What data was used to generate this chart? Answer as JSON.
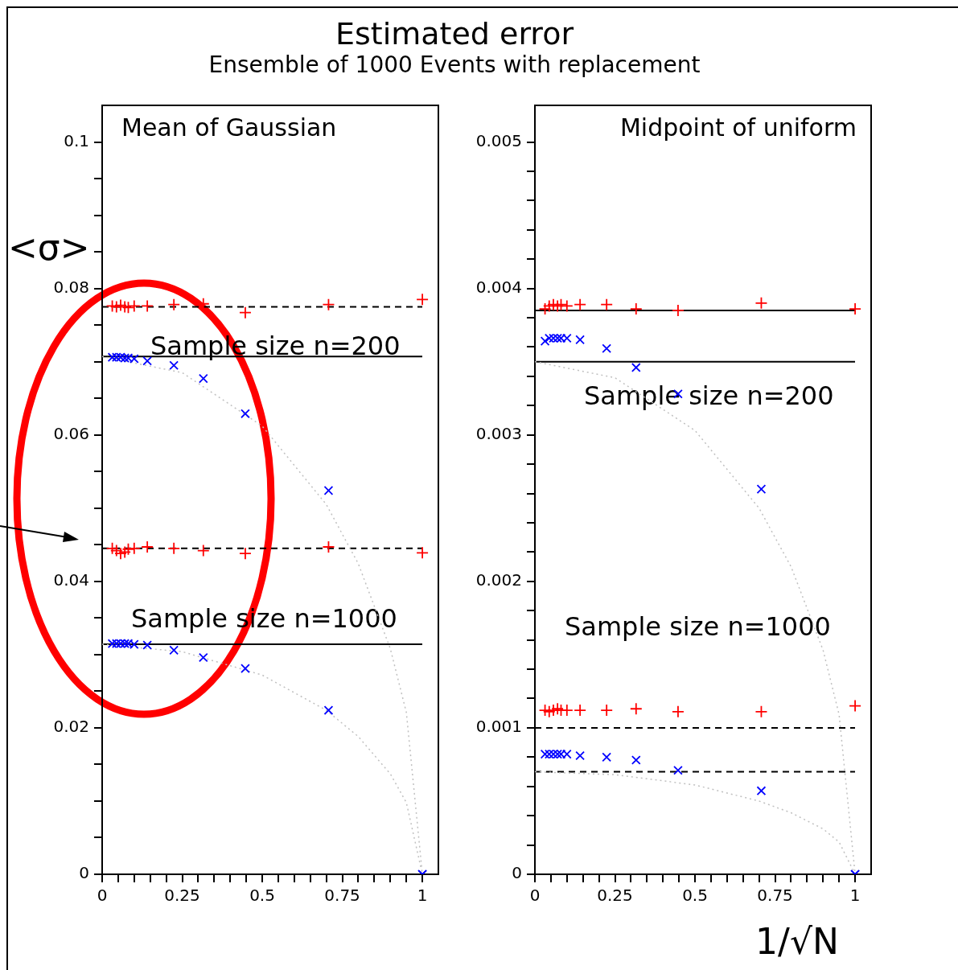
{
  "chart_data": [
    {
      "type": "scatter",
      "title": "Estimated error",
      "subtitle": "Ensemble of 1000 Events with replacement",
      "ylabel": "<σ>",
      "annotations": [
        "Mean of Gaussian",
        "Sample size n=200",
        "Sample size n=1000"
      ],
      "xlim": [
        0,
        1.05
      ],
      "ylim": [
        0,
        0.105
      ],
      "xticks": [
        0,
        {
          "value": 0.05,
          "label": null
        },
        {
          "value": 0.1,
          "label": null
        },
        {
          "value": 0.15,
          "label": null
        },
        {
          "value": 0.2,
          "label": null
        },
        0.25,
        {
          "value": 0.3,
          "label": null
        },
        {
          "value": 0.35,
          "label": null
        },
        {
          "value": 0.4,
          "label": null
        },
        {
          "value": 0.45,
          "label": null
        },
        0.5,
        {
          "value": 0.55,
          "label": null
        },
        {
          "value": 0.6,
          "label": null
        },
        {
          "value": 0.65,
          "label": null
        },
        {
          "value": 0.7,
          "label": null
        },
        0.75,
        {
          "value": 0.8,
          "label": null
        },
        {
          "value": 0.85,
          "label": null
        },
        {
          "value": 0.9,
          "label": null
        },
        {
          "value": 0.95,
          "label": null
        },
        1
      ],
      "yticks": [
        0,
        {
          "value": 0.005,
          "label": null
        },
        {
          "value": 0.01,
          "label": null
        },
        {
          "value": 0.015,
          "label": null
        },
        0.02,
        {
          "value": 0.025,
          "label": null
        },
        {
          "value": 0.03,
          "label": null
        },
        {
          "value": 0.035,
          "label": null
        },
        0.04,
        {
          "value": 0.045,
          "label": null
        },
        {
          "value": 0.05,
          "label": null
        },
        {
          "value": 0.055,
          "label": null
        },
        0.06,
        {
          "value": 0.065,
          "label": null
        },
        {
          "value": 0.07,
          "label": null
        },
        {
          "value": 0.075,
          "label": null
        },
        0.08,
        {
          "value": 0.085,
          "label": null
        },
        {
          "value": 0.09,
          "label": null
        },
        {
          "value": 0.095,
          "label": null
        },
        0.1
      ],
      "ref_lines": [
        {
          "axis": "y",
          "value": 0.0775,
          "color": "#000000",
          "line_style": "dashed"
        },
        {
          "axis": "y",
          "value": 0.0707,
          "color": "#000000",
          "line_style": "solid"
        },
        {
          "axis": "y",
          "value": 0.0445,
          "color": "#000000",
          "line_style": "dashed"
        },
        {
          "axis": "y",
          "value": 0.0314,
          "color": "#000000",
          "line_style": "solid"
        }
      ],
      "series": [
        {
          "type": "line",
          "color": "#c0c0c0",
          "line_style": "dotted",
          "marker": "none",
          "x": [
            0,
            0.25,
            0.5,
            0.7,
            0.8,
            0.9,
            0.95,
            1
          ],
          "values": [
            0.0707,
            0.0685,
            0.0612,
            0.0505,
            0.0424,
            0.0308,
            0.0221,
            0
          ]
        },
        {
          "type": "line",
          "color": "#c0c0c0",
          "line_style": "dotted",
          "marker": "none",
          "x": [
            0,
            0.25,
            0.5,
            0.7,
            0.8,
            0.9,
            0.95,
            1
          ],
          "values": [
            0.0314,
            0.0304,
            0.0272,
            0.0224,
            0.0188,
            0.0137,
            0.0098,
            0
          ]
        },
        {
          "color": "#ff0000",
          "marker": "cross",
          "x": [
            0.0316,
            0.0447,
            0.0577,
            0.0707,
            0.0816,
            0.1,
            0.141,
            0.224,
            0.316,
            0.447,
            0.707,
            1
          ],
          "values": [
            0.0776,
            0.0775,
            0.0777,
            0.0775,
            0.0774,
            0.0776,
            0.0776,
            0.0778,
            0.0779,
            0.0767,
            0.0778,
            0.0785
          ]
        },
        {
          "color": "#0000ff",
          "marker": "x",
          "x": [
            0.0316,
            0.0447,
            0.0577,
            0.0707,
            0.0816,
            0.1,
            0.141,
            0.224,
            0.316,
            0.447,
            0.707,
            1
          ],
          "values": [
            0.0706,
            0.0706,
            0.0706,
            0.0705,
            0.0705,
            0.0704,
            0.0701,
            0.0695,
            0.0677,
            0.0629,
            0.0524,
            0
          ]
        },
        {
          "color": "#ff0000",
          "marker": "cross",
          "x": [
            0.0316,
            0.0447,
            0.0577,
            0.0707,
            0.0816,
            0.1,
            0.141,
            0.224,
            0.316,
            0.447,
            0.707,
            1
          ],
          "values": [
            0.0445,
            0.0442,
            0.0438,
            0.044,
            0.0444,
            0.0445,
            0.0447,
            0.0445,
            0.0442,
            0.0438,
            0.0447,
            0.0439
          ]
        },
        {
          "color": "#0000ff",
          "marker": "x",
          "x": [
            0.0316,
            0.0447,
            0.0577,
            0.0707,
            0.0816,
            0.1,
            0.141,
            0.224,
            0.316,
            0.447,
            0.707,
            1
          ],
          "values": [
            0.0315,
            0.0315,
            0.0315,
            0.0315,
            0.0315,
            0.0314,
            0.0313,
            0.0306,
            0.0296,
            0.0281,
            0.0224,
            0
          ]
        }
      ]
    },
    {
      "type": "scatter",
      "xlabel": "1/√N",
      "annotations": [
        "Midpoint of uniform",
        "Sample size n=200",
        "Sample size n=1000"
      ],
      "xlim": [
        0,
        1.05
      ],
      "ylim": [
        0,
        0.00525
      ],
      "xticks": [
        0,
        {
          "value": 0.05,
          "label": null
        },
        {
          "value": 0.1,
          "label": null
        },
        {
          "value": 0.15,
          "label": null
        },
        {
          "value": 0.2,
          "label": null
        },
        0.25,
        {
          "value": 0.3,
          "label": null
        },
        {
          "value": 0.35,
          "label": null
        },
        {
          "value": 0.4,
          "label": null
        },
        {
          "value": 0.45,
          "label": null
        },
        0.5,
        {
          "value": 0.55,
          "label": null
        },
        {
          "value": 0.6,
          "label": null
        },
        {
          "value": 0.65,
          "label": null
        },
        {
          "value": 0.7,
          "label": null
        },
        0.75,
        {
          "value": 0.8,
          "label": null
        },
        {
          "value": 0.85,
          "label": null
        },
        {
          "value": 0.9,
          "label": null
        },
        {
          "value": 0.95,
          "label": null
        },
        1
      ],
      "yticks": [
        0,
        {
          "value": 0.0002,
          "label": null
        },
        {
          "value": 0.0004,
          "label": null
        },
        {
          "value": 0.0006,
          "label": null
        },
        {
          "value": 0.0008,
          "label": null
        },
        0.001,
        {
          "value": 0.0012,
          "label": null
        },
        {
          "value": 0.0014,
          "label": null
        },
        {
          "value": 0.0016,
          "label": null
        },
        {
          "value": 0.0018,
          "label": null
        },
        0.002,
        {
          "value": 0.0022,
          "label": null
        },
        {
          "value": 0.0024,
          "label": null
        },
        {
          "value": 0.0026,
          "label": null
        },
        {
          "value": 0.0028,
          "label": null
        },
        0.003,
        {
          "value": 0.0032,
          "label": null
        },
        {
          "value": 0.0034,
          "label": null
        },
        {
          "value": 0.0036,
          "label": null
        },
        {
          "value": 0.0038,
          "label": null
        },
        0.004,
        {
          "value": 0.0042,
          "label": null
        },
        {
          "value": 0.0044,
          "label": null
        },
        {
          "value": 0.0046,
          "label": null
        },
        {
          "value": 0.0048,
          "label": null
        },
        0.005
      ],
      "ref_lines": [
        {
          "axis": "y",
          "value": 0.00385,
          "color": "#000000",
          "line_style": "solid"
        },
        {
          "axis": "y",
          "value": 0.0035,
          "color": "#000000",
          "line_style": "solid"
        },
        {
          "axis": "y",
          "value": 0.001,
          "color": "#000000",
          "line_style": "dashed"
        },
        {
          "axis": "y",
          "value": 0.0007,
          "color": "#000000",
          "line_style": "dashed"
        }
      ],
      "series": [
        {
          "type": "line",
          "color": "#c0c0c0",
          "line_style": "dotted",
          "marker": "none",
          "x": [
            0,
            0.25,
            0.5,
            0.7,
            0.8,
            0.9,
            0.95,
            1
          ],
          "values": [
            0.0035,
            0.00339,
            0.00303,
            0.0025,
            0.0021,
            0.00153,
            0.00109,
            0
          ]
        },
        {
          "type": "line",
          "color": "#c0c0c0",
          "line_style": "dotted",
          "marker": "none",
          "x": [
            0,
            0.25,
            0.5,
            0.7,
            0.8,
            0.9,
            0.95,
            1
          ],
          "values": [
            0.0007,
            0.00068,
            0.00061,
            0.0005,
            0.00042,
            0.00031,
            0.00022,
            0
          ]
        },
        {
          "color": "#ff0000",
          "marker": "cross",
          "x": [
            0.0316,
            0.0447,
            0.0577,
            0.0707,
            0.0816,
            0.1,
            0.141,
            0.224,
            0.316,
            0.447,
            0.707,
            1
          ],
          "values": [
            0.00386,
            0.00388,
            0.00389,
            0.00388,
            0.00389,
            0.00388,
            0.00389,
            0.00389,
            0.00386,
            0.00385,
            0.0039,
            0.00386
          ]
        },
        {
          "color": "#0000ff",
          "marker": "x",
          "x": [
            0.0316,
            0.0447,
            0.0577,
            0.0707,
            0.0816,
            0.1,
            0.141,
            0.224,
            0.316,
            0.447,
            0.707,
            1
          ],
          "values": [
            0.00364,
            0.00366,
            0.00366,
            0.00366,
            0.00366,
            0.00366,
            0.00365,
            0.00359,
            0.00346,
            0.00328,
            0.00263,
            0
          ]
        },
        {
          "color": "#ff0000",
          "marker": "cross",
          "x": [
            0.0316,
            0.0447,
            0.0577,
            0.0707,
            0.0816,
            0.1,
            0.141,
            0.224,
            0.316,
            0.447,
            0.707,
            1
          ],
          "values": [
            0.00112,
            0.00111,
            0.00112,
            0.00113,
            0.00112,
            0.00112,
            0.00112,
            0.00112,
            0.00113,
            0.00111,
            0.00111,
            0.00115
          ]
        },
        {
          "color": "#0000ff",
          "marker": "x",
          "x": [
            0.0316,
            0.0447,
            0.0577,
            0.0707,
            0.0816,
            0.1,
            0.141,
            0.224,
            0.316,
            0.447,
            0.707,
            1
          ],
          "values": [
            0.00082,
            0.00082,
            0.00082,
            0.00082,
            0.00082,
            0.00082,
            0.00081,
            0.0008,
            0.00078,
            0.00071,
            0.00057,
            0
          ]
        }
      ]
    }
  ]
}
